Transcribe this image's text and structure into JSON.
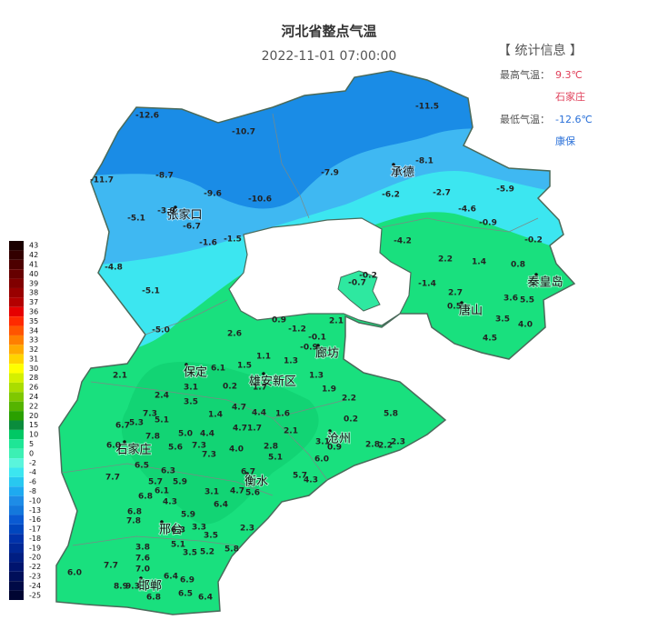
{
  "title": "河北省整点气温",
  "time": "2022-11-01 07:00:00",
  "stats": {
    "heading": "【 统计信息 】",
    "max_label": "最高气温：",
    "max_value": "9.3℃",
    "max_station": "石家庄",
    "min_label": "最低气温：",
    "min_value": "-12.6℃",
    "min_station": "康保"
  },
  "cities": [
    "张家口",
    "承德",
    "秦皇岛",
    "唐山",
    "廊坊",
    "保定",
    "雄安新区",
    "沧州",
    "石家庄",
    "衡水",
    "邢台",
    "邯郸"
  ],
  "stations": [
    "-12.6",
    "-10.7",
    "-11.5",
    "-8.1",
    "-7.9",
    "-11.7",
    "-8.7",
    "-9.6",
    "-10.6",
    "-6.2",
    "-2.7",
    "-5.9",
    "-5.1",
    "-3.9",
    "-4.6",
    "-6.7",
    "-0.9",
    "-1.6",
    "-1.5",
    "-4.2",
    "-0.2",
    "-4.8",
    "2.2",
    "1.4",
    "0.8",
    "-5.1",
    "-1.4",
    "2.7",
    "3.6",
    "5.5",
    "0.5",
    "-0.7",
    "-0.2",
    "3.5",
    "4.0",
    "4.5",
    "-5.0",
    "2.6",
    "0.9",
    "2.1",
    "-1.2",
    "-0.1",
    "2.1",
    "6.1",
    "1.5",
    "1.1",
    "1.3",
    "-0.9",
    "0.2",
    "3.1",
    "1.7",
    "1.3",
    "1.9",
    "2.4",
    "3.5",
    "4.7",
    "2.2",
    "1.4",
    "4.4",
    "1.6",
    "0.2",
    "5.8",
    "7.3",
    "5.1",
    "6.7",
    "5.3",
    "4.7",
    "1.7",
    "2.1",
    "5.0",
    "4.4",
    "7.8",
    "3.1",
    "0.9",
    "2.8",
    "2.2",
    "2.3",
    "6.0",
    "5.6",
    "7.3",
    "4.0",
    "2.8",
    "7.3",
    "6.5",
    "6.3",
    "5.1",
    "6.0",
    "7.7",
    "5.7",
    "5.9",
    "6.7",
    "5.7",
    "4.3",
    "6.1",
    "6.8",
    "3.1",
    "4.7",
    "5.6",
    "4.3",
    "6.4",
    "6.8",
    "7.8",
    "5.9",
    "2.3",
    "3.3",
    "6.3",
    "3.5",
    "5.1",
    "3.8",
    "5.8",
    "3.5",
    "5.2",
    "7.6",
    "7.7",
    "7.0",
    "6.0",
    "6.4",
    "6.9",
    "8.9",
    "9.3",
    "6.5",
    "6.4",
    "6.8"
  ],
  "legend": [
    {
      "value": 43,
      "color": "#1a0000"
    },
    {
      "value": 42,
      "color": "#330000"
    },
    {
      "value": 41,
      "color": "#4d0000"
    },
    {
      "value": 40,
      "color": "#660000"
    },
    {
      "value": 39,
      "color": "#800000"
    },
    {
      "value": 38,
      "color": "#990000"
    },
    {
      "value": 37,
      "color": "#b30000"
    },
    {
      "value": 36,
      "color": "#e60000"
    },
    {
      "value": 35,
      "color": "#ff2a00"
    },
    {
      "value": 34,
      "color": "#ff5500"
    },
    {
      "value": 33,
      "color": "#ff7f00"
    },
    {
      "value": 32,
      "color": "#ffaa00"
    },
    {
      "value": 31,
      "color": "#ffd400"
    },
    {
      "value": 30,
      "color": "#ffff00"
    },
    {
      "value": 28,
      "color": "#d4f000"
    },
    {
      "value": 26,
      "color": "#aadd00"
    },
    {
      "value": 24,
      "color": "#7fc800"
    },
    {
      "value": 22,
      "color": "#55b400"
    },
    {
      "value": 20,
      "color": "#2aa000"
    },
    {
      "value": 15,
      "color": "#0a8c3c"
    },
    {
      "value": 10,
      "color": "#00c864"
    },
    {
      "value": 5,
      "color": "#1ee696"
    },
    {
      "value": 0,
      "color": "#3cf0b4"
    },
    {
      "value": -2,
      "color": "#5af5dc"
    },
    {
      "value": -4,
      "color": "#3ce6f0"
    },
    {
      "value": -6,
      "color": "#28c8f0"
    },
    {
      "value": -8,
      "color": "#1eaaf0"
    },
    {
      "value": -10,
      "color": "#1e8ce6"
    },
    {
      "value": -13,
      "color": "#1478dc"
    },
    {
      "value": -16,
      "color": "#0a5ad2"
    },
    {
      "value": -17,
      "color": "#0046be"
    },
    {
      "value": -18,
      "color": "#0032aa"
    },
    {
      "value": -19,
      "color": "#002896"
    },
    {
      "value": -20,
      "color": "#001e82"
    },
    {
      "value": -22,
      "color": "#00146e"
    },
    {
      "value": -23,
      "color": "#000f5a"
    },
    {
      "value": -24,
      "color": "#000a46"
    },
    {
      "value": -25,
      "color": "#000532"
    }
  ]
}
